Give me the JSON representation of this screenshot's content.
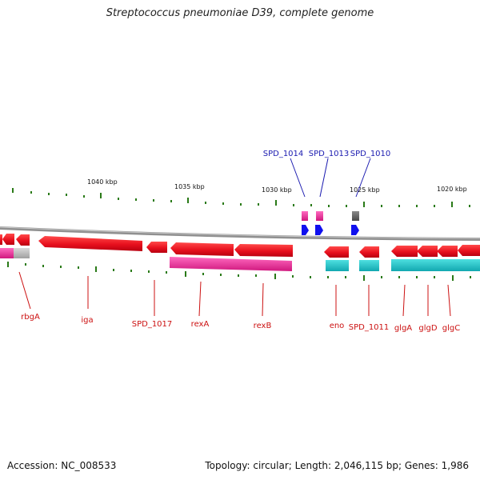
{
  "title": "Streptococcus pneumoniae D39, complete genome",
  "footer": {
    "accession": "Accession: NC_008533",
    "summary": "Topology: circular; Length: 2,046,115 bp; Genes: 1,986"
  },
  "colors": {
    "forward_gene": "#e8101e",
    "reverse_gene": "#e8101e",
    "pink_track": "#ee2a9a",
    "cyan_track": "#1ec8c8",
    "grey_track": "#b8b8b8",
    "rna_blue": "#1010ee",
    "tick": "#2a7a18",
    "backbone": "#808080",
    "label_red": "#cc1111",
    "label_blue": "#1a1ab0"
  },
  "scale_labels": [
    "1040 kbp",
    "1035 kbp",
    "1030 kbp",
    "1025 kbp",
    "1020 kbp"
  ],
  "top_gene_labels": [
    "SPD_1014",
    "SPD_1013",
    "SPD_1010"
  ],
  "bottom_gene_labels": [
    "rbgA",
    "iga",
    "SPD_1017",
    "rexA",
    "rexB",
    "eno",
    "SPD_1011",
    "glgA",
    "glgD",
    "glgC"
  ]
}
